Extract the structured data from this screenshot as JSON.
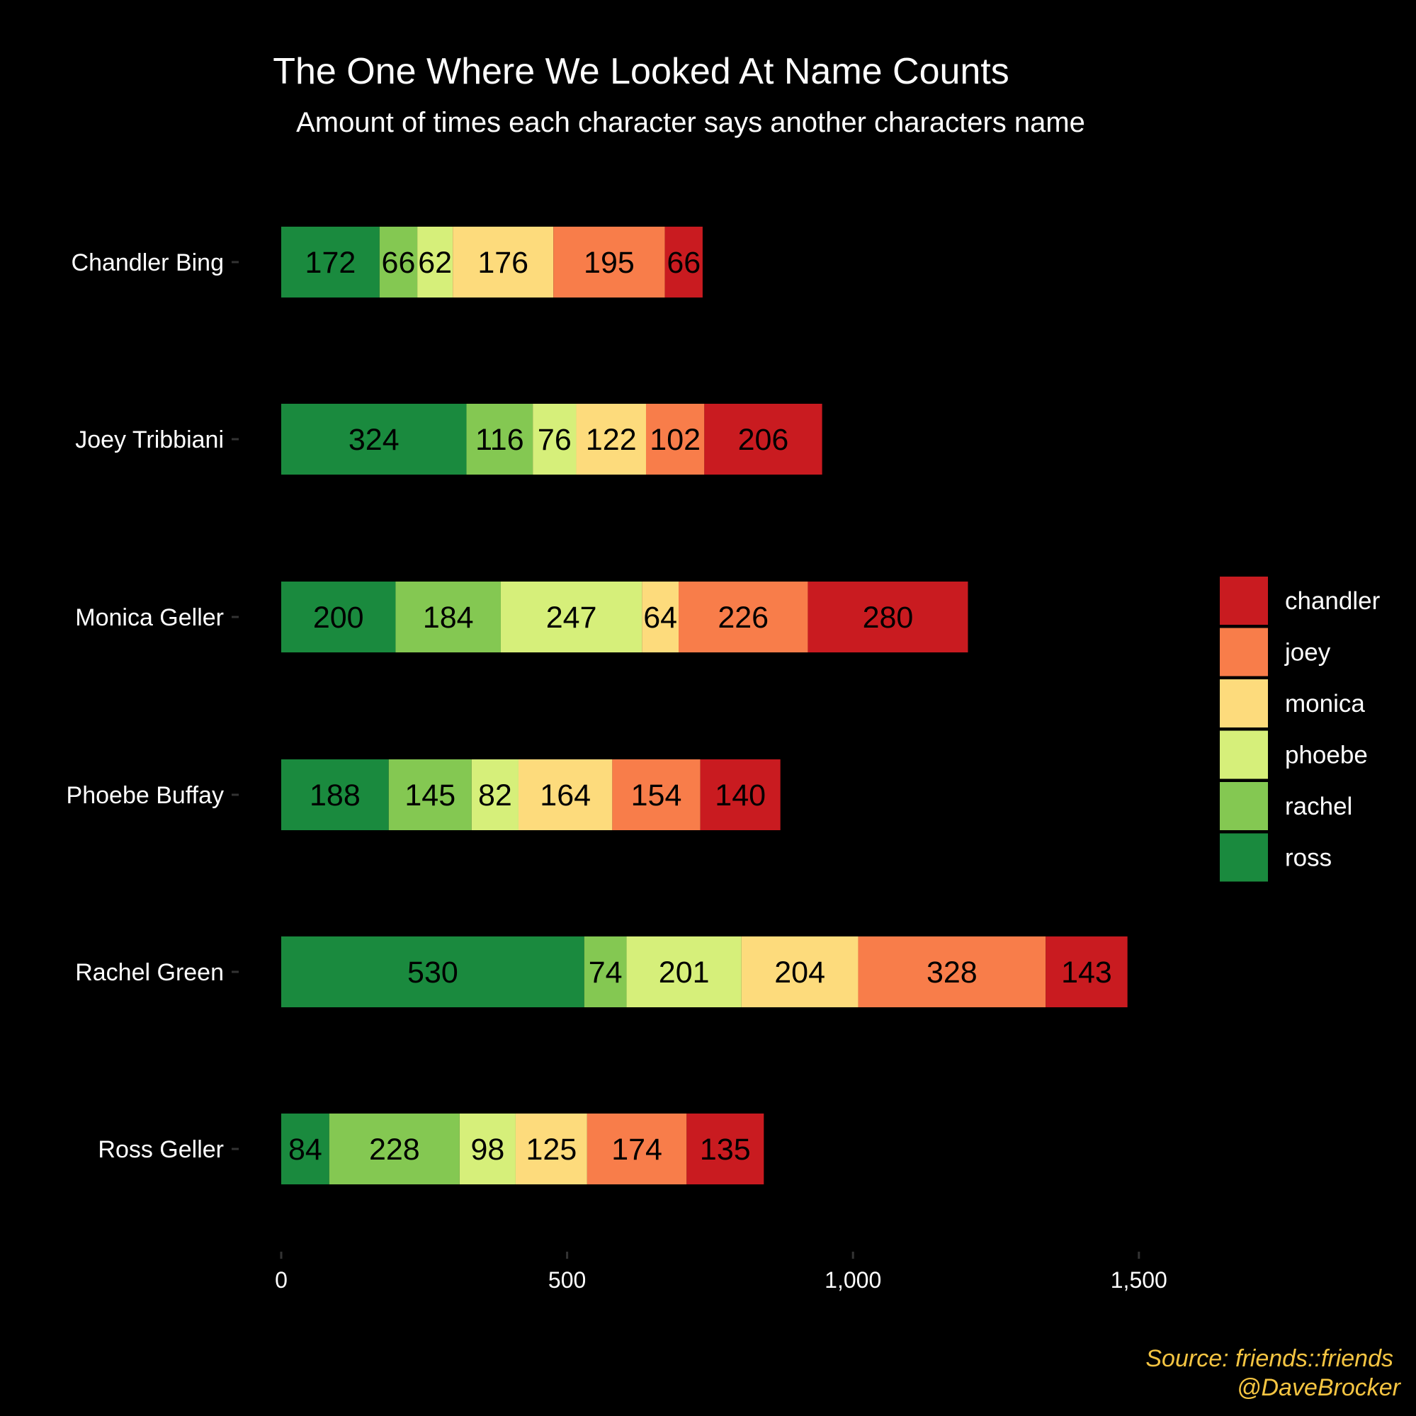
{
  "colors": {
    "background": "#000000",
    "text": "#ffffff",
    "caption": "#F5C542",
    "tick": "#333333"
  },
  "caption": {
    "source": "Source: friends::friends",
    "author": "@DaveBrocker"
  },
  "chart_data": {
    "type": "bar",
    "orientation": "horizontal",
    "stacked": true,
    "title": "The One Where We Looked At Name Counts",
    "subtitle": "Amount of times each character says another characters name",
    "xlabel": "",
    "ylabel": "",
    "xlim": [
      0,
      1550
    ],
    "x_ticks": [
      0,
      500,
      1000,
      1500
    ],
    "x_tick_labels": [
      "0",
      "500",
      "1,000",
      "1,500"
    ],
    "grid": false,
    "legend_position": "right",
    "categories": [
      "Chandler Bing",
      "Joey Tribbiani",
      "Monica Geller",
      "Phoebe Buffay",
      "Rachel Green",
      "Ross Geller"
    ],
    "series": [
      {
        "name": "ross",
        "color": "#1A8A3E",
        "values": [
          172,
          324,
          200,
          188,
          530,
          84
        ]
      },
      {
        "name": "rachel",
        "color": "#84C852",
        "values": [
          66,
          116,
          184,
          145,
          74,
          228
        ]
      },
      {
        "name": "phoebe",
        "color": "#D6EF7A",
        "values": [
          62,
          76,
          247,
          82,
          201,
          98
        ]
      },
      {
        "name": "monica",
        "color": "#FDDB7C",
        "values": [
          176,
          122,
          64,
          164,
          204,
          125
        ]
      },
      {
        "name": "joey",
        "color": "#F87D4A",
        "values": [
          195,
          102,
          226,
          154,
          328,
          174
        ]
      },
      {
        "name": "chandler",
        "color": "#C91B20",
        "values": [
          66,
          206,
          280,
          140,
          143,
          135
        ]
      }
    ],
    "legend_order": [
      "chandler",
      "joey",
      "monica",
      "phoebe",
      "rachel",
      "ross"
    ]
  }
}
